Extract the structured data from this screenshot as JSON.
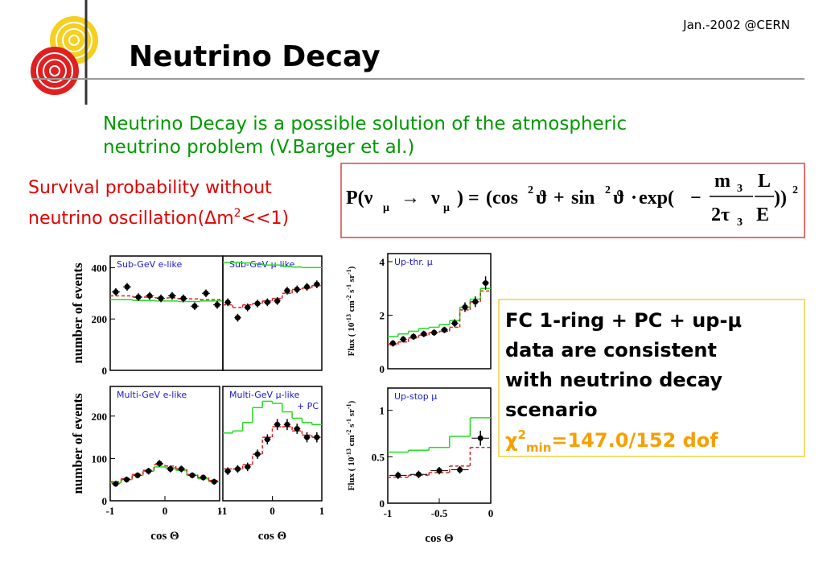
{
  "header": {
    "title": "Neutrino Decay",
    "date": "Jan.-2002 @CERN"
  },
  "intro": [
    "Neutrino Decay is a possible solution of the atmospheric",
    "neutrino problem (V.Barger et al.)"
  ],
  "survival": [
    "Survival probability without",
    "neutrino oscillation(Δm",
    "2",
    "<<1)"
  ],
  "formula": [
    "P(ν",
    "μ",
    "→",
    "ν",
    "μ",
    ")",
    "=",
    "(cos",
    "2",
    "ϑ",
    "+",
    "sin",
    "2",
    "ϑ",
    "·",
    "exp(",
    "−",
    "m",
    "3",
    "2τ",
    "3",
    "L",
    "E",
    "))",
    "2"
  ],
  "conclusion": {
    "lines": [
      "FC 1-ring + PC + up-μ",
      "data are consistent",
      "with neutrino decay",
      "scenario"
    ],
    "chi": [
      "χ",
      "2",
      "min",
      "=147.0/152 dof"
    ]
  },
  "chart_data": [
    {
      "type": "histogram",
      "label": [
        "Sub-GeV e-like"
      ],
      "ylabel": [
        "number of events"
      ],
      "ylim": [
        0,
        445
      ],
      "yticks": [
        0,
        200,
        400
      ],
      "bins": [
        -1,
        -0.8,
        -0.6,
        -0.4,
        -0.2,
        0,
        0.2,
        0.4,
        0.6,
        0.8,
        1
      ],
      "series": [
        {
          "style": "step",
          "color": "#22dd22",
          "values": [
            275,
            275,
            272,
            272,
            270,
            270,
            268,
            268,
            270,
            270
          ]
        },
        {
          "style": "step",
          "dash": true,
          "color": "#dd2222",
          "values": [
            290,
            290,
            285,
            285,
            282,
            282,
            278,
            278,
            275,
            275
          ]
        },
        {
          "style": "points",
          "color": "#000000",
          "values": [
            305,
            325,
            285,
            290,
            280,
            290,
            280,
            250,
            300,
            255
          ],
          "errors": [
            15,
            15,
            15,
            15,
            15,
            15,
            15,
            15,
            15,
            15
          ]
        }
      ]
    },
    {
      "type": "histogram",
      "label": [
        "Sub-GeV μ-like"
      ],
      "ylim": [
        0,
        445
      ],
      "bins": [
        -1,
        -0.8,
        -0.6,
        -0.4,
        -0.2,
        0,
        0.2,
        0.4,
        0.6,
        0.8,
        1
      ],
      "series": [
        {
          "style": "step",
          "color": "#22dd22",
          "values": [
            420,
            420,
            418,
            415,
            410,
            410,
            405,
            402,
            400,
            400
          ]
        },
        {
          "style": "step",
          "dash": true,
          "color": "#dd2222",
          "values": [
            255,
            245,
            255,
            260,
            270,
            280,
            300,
            315,
            320,
            330
          ]
        },
        {
          "style": "points",
          "color": "#000000",
          "values": [
            265,
            205,
            245,
            260,
            265,
            270,
            310,
            315,
            325,
            335
          ],
          "errors": [
            15,
            15,
            15,
            15,
            15,
            15,
            15,
            15,
            15,
            15
          ]
        }
      ]
    },
    {
      "type": "histogram",
      "label": [
        "Up-thr. μ"
      ],
      "ylabel": [
        "Flux ( 10",
        "-13",
        " cm",
        "-2",
        " s",
        "-1",
        " sr",
        "-1",
        ")"
      ],
      "ylim": [
        0,
        4.3
      ],
      "yticks": [
        0,
        2,
        4
      ],
      "bins": [
        -1,
        -0.9,
        -0.8,
        -0.7,
        -0.6,
        -0.5,
        -0.4,
        -0.3,
        -0.2,
        -0.1,
        0
      ],
      "series": [
        {
          "style": "step",
          "color": "#22dd22",
          "values": [
            1.2,
            1.3,
            1.4,
            1.5,
            1.55,
            1.65,
            1.8,
            2.3,
            2.6,
            3.0
          ]
        },
        {
          "style": "step",
          "dash": true,
          "color": "#dd2222",
          "values": [
            0.9,
            1.0,
            1.15,
            1.25,
            1.35,
            1.4,
            1.55,
            2.2,
            2.5,
            2.9
          ]
        },
        {
          "style": "points",
          "color": "#000000",
          "values": [
            0.95,
            1.1,
            1.2,
            1.3,
            1.35,
            1.45,
            1.7,
            2.3,
            2.5,
            3.2
          ],
          "errors": [
            0.12,
            0.12,
            0.12,
            0.12,
            0.12,
            0.12,
            0.15,
            0.18,
            0.2,
            0.25
          ]
        }
      ]
    },
    {
      "type": "histogram",
      "label": [
        "Multi-GeV e-like"
      ],
      "ylabel": [
        "number of events"
      ],
      "xlabel": "cos Θ",
      "ylim": [
        0,
        270
      ],
      "yticks": [
        0,
        100,
        200
      ],
      "xticks": [
        -1,
        0,
        1
      ],
      "bins": [
        -1,
        -0.8,
        -0.6,
        -0.4,
        -0.2,
        0,
        0.2,
        0.4,
        0.6,
        0.8,
        1
      ],
      "series": [
        {
          "style": "step",
          "color": "#22dd22",
          "values": [
            42,
            50,
            60,
            70,
            80,
            78,
            72,
            60,
            52,
            45
          ]
        },
        {
          "style": "step",
          "dash": true,
          "color": "#dd2222",
          "values": [
            45,
            52,
            62,
            72,
            85,
            82,
            75,
            62,
            55,
            48
          ]
        },
        {
          "style": "points",
          "color": "#000000",
          "values": [
            40,
            50,
            60,
            70,
            88,
            75,
            75,
            60,
            55,
            45
          ],
          "errors": [
            7,
            7,
            7,
            8,
            8,
            8,
            8,
            7,
            7,
            7
          ]
        }
      ]
    },
    {
      "type": "histogram",
      "label": [
        "Multi-GeV μ-like",
        "+ PC"
      ],
      "xlabel": "cos Θ",
      "ylim": [
        0,
        270
      ],
      "xticks": [
        -1,
        0,
        1
      ],
      "bins": [
        -1,
        -0.8,
        -0.6,
        -0.4,
        -0.2,
        0,
        0.2,
        0.4,
        0.6,
        0.8,
        1
      ],
      "series": [
        {
          "style": "step",
          "color": "#22dd22",
          "values": [
            160,
            165,
            185,
            220,
            235,
            230,
            210,
            195,
            185,
            180
          ]
        },
        {
          "style": "step",
          "dash": true,
          "color": "#dd2222",
          "values": [
            75,
            75,
            85,
            110,
            150,
            175,
            175,
            165,
            155,
            150
          ]
        },
        {
          "style": "points",
          "color": "#000000",
          "values": [
            70,
            75,
            80,
            110,
            145,
            180,
            180,
            170,
            150,
            150
          ],
          "errors": [
            9,
            9,
            10,
            11,
            12,
            13,
            13,
            12,
            12,
            12
          ]
        }
      ]
    },
    {
      "type": "histogram",
      "label": [
        "Up-stop μ"
      ],
      "ylabel": [
        "Flux ( 10",
        "-13",
        " cm",
        "-2",
        " s",
        "-1",
        " sr",
        "-1",
        ")"
      ],
      "xlabel": "cos Θ",
      "ylim": [
        0,
        1.24
      ],
      "yticks": [
        0,
        0.5,
        1
      ],
      "xticks": [
        -1,
        -0.5,
        0
      ],
      "bins": [
        -1,
        -0.8,
        -0.6,
        -0.4,
        -0.2,
        0
      ],
      "series": [
        {
          "style": "step",
          "color": "#22dd22",
          "values": [
            0.55,
            0.57,
            0.6,
            0.72,
            0.92
          ]
        },
        {
          "style": "step",
          "dash": true,
          "color": "#dd2222",
          "values": [
            0.28,
            0.3,
            0.33,
            0.4,
            0.6
          ]
        },
        {
          "style": "points",
          "color": "#000000",
          "values": [
            0.3,
            0.31,
            0.35,
            0.36,
            0.7
          ],
          "errors": [
            0.04,
            0.04,
            0.04,
            0.04,
            0.08
          ]
        }
      ]
    }
  ]
}
